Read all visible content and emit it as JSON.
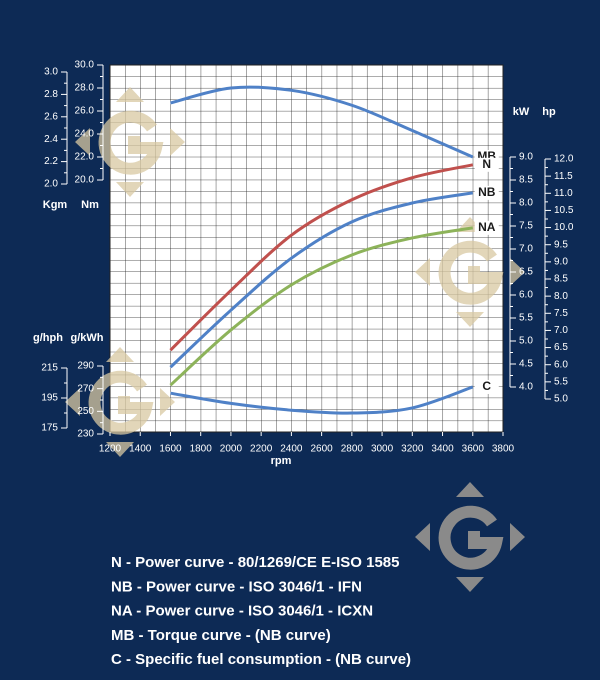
{
  "chart_data": {
    "type": "line",
    "x_label": "rpm",
    "xlim": [
      1200,
      3800
    ],
    "xticks": [
      1200,
      1400,
      1600,
      1800,
      2000,
      2200,
      2400,
      2600,
      2800,
      3000,
      3200,
      3400,
      3600,
      3800
    ],
    "x": [
      1600,
      2000,
      2400,
      2800,
      3200,
      3600
    ],
    "left_axes": [
      {
        "label": "Kgm",
        "lim": [
          2.0,
          3.0
        ],
        "ticks": [
          {
            "value": 2.0,
            "label": "2.0"
          },
          {
            "value": 2.2,
            "label": "2.2"
          },
          {
            "value": 2.4,
            "label": "2.4"
          },
          {
            "value": 2.6,
            "label": "2.6"
          },
          {
            "value": 2.8,
            "label": "2.8"
          },
          {
            "value": 3.0,
            "label": "3.0"
          }
        ]
      },
      {
        "label": "Nm",
        "lim": [
          20.0,
          30.0
        ],
        "ticks": [
          {
            "value": 20,
            "label": "20.0"
          },
          {
            "value": 22,
            "label": "22.0"
          },
          {
            "value": 24,
            "label": "24.0"
          },
          {
            "value": 26,
            "label": "26.0"
          },
          {
            "value": 28,
            "label": "28.0"
          },
          {
            "value": 30,
            "label": "30.0"
          }
        ]
      },
      {
        "label": "g/hph",
        "lim": [
          175,
          215
        ],
        "ticks": [
          175,
          195,
          215
        ]
      },
      {
        "label": "g/kWh",
        "lim": [
          230,
          290
        ],
        "ticks": [
          230,
          250,
          270,
          290
        ]
      }
    ],
    "right_axes": [
      {
        "label": "kW",
        "lim": [
          4.0,
          9.0
        ],
        "ticks": [
          {
            "value": 4.0,
            "label": "4.0"
          },
          {
            "value": 4.5,
            "label": "4.5"
          },
          {
            "value": 5.0,
            "label": "5.0"
          },
          {
            "value": 5.5,
            "label": "5.5"
          },
          {
            "value": 6.0,
            "label": "6.0"
          },
          {
            "value": 6.5,
            "label": "6.5"
          },
          {
            "value": 7.0,
            "label": "7.0"
          },
          {
            "value": 7.5,
            "label": "7.5"
          },
          {
            "value": 8.0,
            "label": "8.0"
          },
          {
            "value": 8.5,
            "label": "8.5"
          },
          {
            "value": 9.0,
            "label": "9.0"
          }
        ]
      },
      {
        "label": "hp",
        "lim": [
          5.0,
          12.0
        ],
        "ticks": [
          {
            "value": 5.0,
            "label": "5.0"
          },
          {
            "value": 5.5,
            "label": "5.5"
          },
          {
            "value": 6.0,
            "label": "6.0"
          },
          {
            "value": 6.5,
            "label": "6.5"
          },
          {
            "value": 7.0,
            "label": "7.0"
          },
          {
            "value": 7.5,
            "label": "7.5"
          },
          {
            "value": 8.0,
            "label": "8.0"
          },
          {
            "value": 8.5,
            "label": "8.5"
          },
          {
            "value": 9.0,
            "label": "9.0"
          },
          {
            "value": 9.5,
            "label": "9.5"
          },
          {
            "value": 10.0,
            "label": "10.0"
          },
          {
            "value": 10.5,
            "label": "10.5"
          },
          {
            "value": 11.0,
            "label": "11.0"
          },
          {
            "value": 11.5,
            "label": "11.5"
          },
          {
            "value": 12.0,
            "label": "12.0"
          }
        ]
      }
    ],
    "series": [
      {
        "name": "MB",
        "color": "#4f81c7",
        "axis": "Nm",
        "values": [
          26.7,
          28.0,
          27.8,
          26.5,
          24.3,
          22.0
        ]
      },
      {
        "name": "N",
        "color": "#c0504d",
        "axis": "kW",
        "values": [
          4.8,
          6.1,
          7.3,
          8.07,
          8.55,
          8.83
        ]
      },
      {
        "name": "NB",
        "color": "#4f81c7",
        "axis": "kW",
        "values": [
          4.43,
          5.67,
          6.8,
          7.59,
          8.0,
          8.22
        ]
      },
      {
        "name": "NA",
        "color": "#8db35a",
        "axis": "kW",
        "values": [
          4.04,
          5.24,
          6.22,
          6.87,
          7.24,
          7.46
        ]
      },
      {
        "name": "C",
        "color": "#4f81c7",
        "axis": "g/kWh",
        "values": [
          266,
          257,
          251,
          248.5,
          253,
          271.5
        ]
      }
    ],
    "notes": [
      "N - Power curve - 80/1269/CE E-ISO 1585",
      "NB - Power curve - ISO 3046/1 - IFN",
      "NA - Power curve - ISO 3046/1 - ICXN",
      "MB - Torque curve - (NB curve)",
      "C - Specific fuel consumption - (NB curve)"
    ]
  }
}
